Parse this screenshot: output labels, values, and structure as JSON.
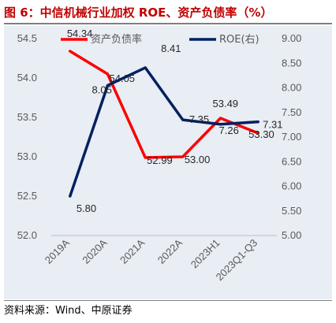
{
  "title": "图 6：中信机械行业加权 ROE、资产负债率（%）",
  "source": "资料来源：Wind、中原证券",
  "colors": {
    "title": "#c00000",
    "debt_ratio": "#ff0000",
    "roe": "#002060",
    "panel": "#e9edf4"
  },
  "chart_data": {
    "type": "line",
    "categories": [
      "2019A",
      "2020A",
      "2021A",
      "2022A",
      "2023H1",
      "2023Q1-Q3"
    ],
    "series": [
      {
        "name": "资产负债率",
        "axis": "left",
        "color": "#ff0000",
        "values": [
          54.34,
          54.05,
          52.99,
          53.0,
          53.49,
          53.3
        ],
        "labels": [
          "54.34",
          "54.05",
          "52.99",
          "53.00",
          "53.49",
          "53.30"
        ]
      },
      {
        "name": "ROE(右)",
        "axis": "right",
        "color": "#002060",
        "values": [
          5.8,
          8.05,
          8.41,
          7.35,
          7.26,
          7.31
        ],
        "labels": [
          "5.80",
          "8.05",
          "8.41",
          "7.35",
          "7.26",
          "7.31"
        ]
      }
    ],
    "y_left": {
      "min": 52.0,
      "max": 54.5,
      "ticks": [
        "52.0",
        "52.5",
        "53.0",
        "53.5",
        "54.0",
        "54.5"
      ]
    },
    "y_right": {
      "min": 5.0,
      "max": 9.0,
      "ticks": [
        "5.00",
        "5.50",
        "6.00",
        "6.50",
        "7.00",
        "7.50",
        "8.00",
        "8.50",
        "9.00"
      ]
    },
    "legend_position": "top",
    "grid": false
  }
}
